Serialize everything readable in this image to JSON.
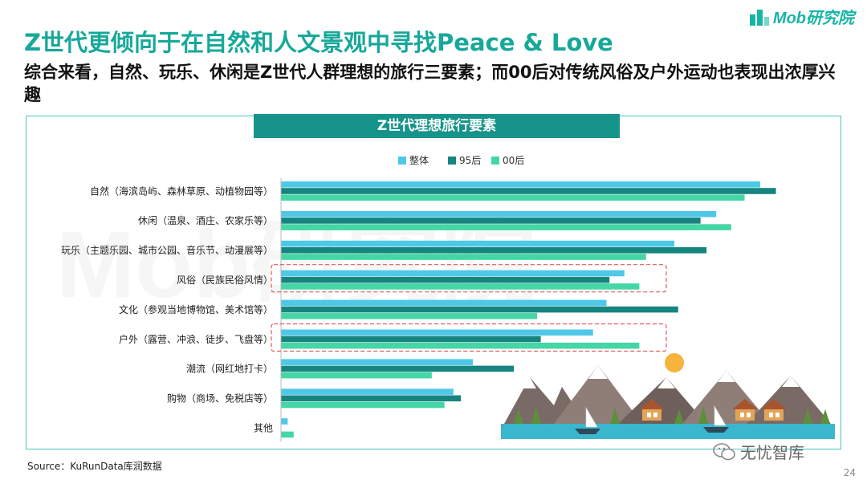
{
  "header": {
    "title": "Z世代更倾向于在自然和人文景观中寻找Peace & Love",
    "subtitle": "综合来看，自然、玩乐、休闲是Z世代人群理想的旅行三要素；而00后对传统风俗及户外运动也表现出浓厚兴趣",
    "logo_text": "Mob研究院"
  },
  "footer": {
    "source": "Source：KuRunData库润数据",
    "page_number": "24",
    "wechat_label": "无忧智库"
  },
  "chart_data": {
    "type": "bar",
    "orientation": "horizontal",
    "title": "Z世代理想旅行要素",
    "categories": [
      "自然（海滨岛屿、森林草原、动植物园等）",
      "休闲（温泉、酒庄、农家乐等）",
      "玩乐（主题乐园、城市公园、音乐节、动漫展等）",
      "风俗（民族民俗风情）",
      "文化（参观当地博物馆、美术馆等）",
      "户外（露营、冲浪、徒步、飞盘等）",
      "潮流（网红地打卡）",
      "购物（商场、免税店等）",
      "其他"
    ],
    "series": [
      {
        "name": "整体",
        "color": "#4fc8e8",
        "values": [
          64.2,
          58.3,
          52.7,
          46.0,
          43.6,
          41.8,
          25.7,
          23.1,
          0.9
        ]
      },
      {
        "name": "95后",
        "color": "#17857f",
        "values": [
          66.3,
          56.2,
          57.0,
          44.0,
          53.2,
          34.8,
          31.2,
          24.1,
          0.0
        ]
      },
      {
        "name": "00后",
        "color": "#45d6a5",
        "values": [
          62.1,
          60.3,
          48.9,
          48.0,
          34.3,
          48.0,
          20.2,
          21.9,
          1.7
        ]
      }
    ],
    "highlighted_categories": [
      "风俗（民族民俗风情）",
      "户外（露营、冲浪、徒步、飞盘等）"
    ],
    "legend_position": "top",
    "grid": false,
    "axis_labels_visible": false
  }
}
